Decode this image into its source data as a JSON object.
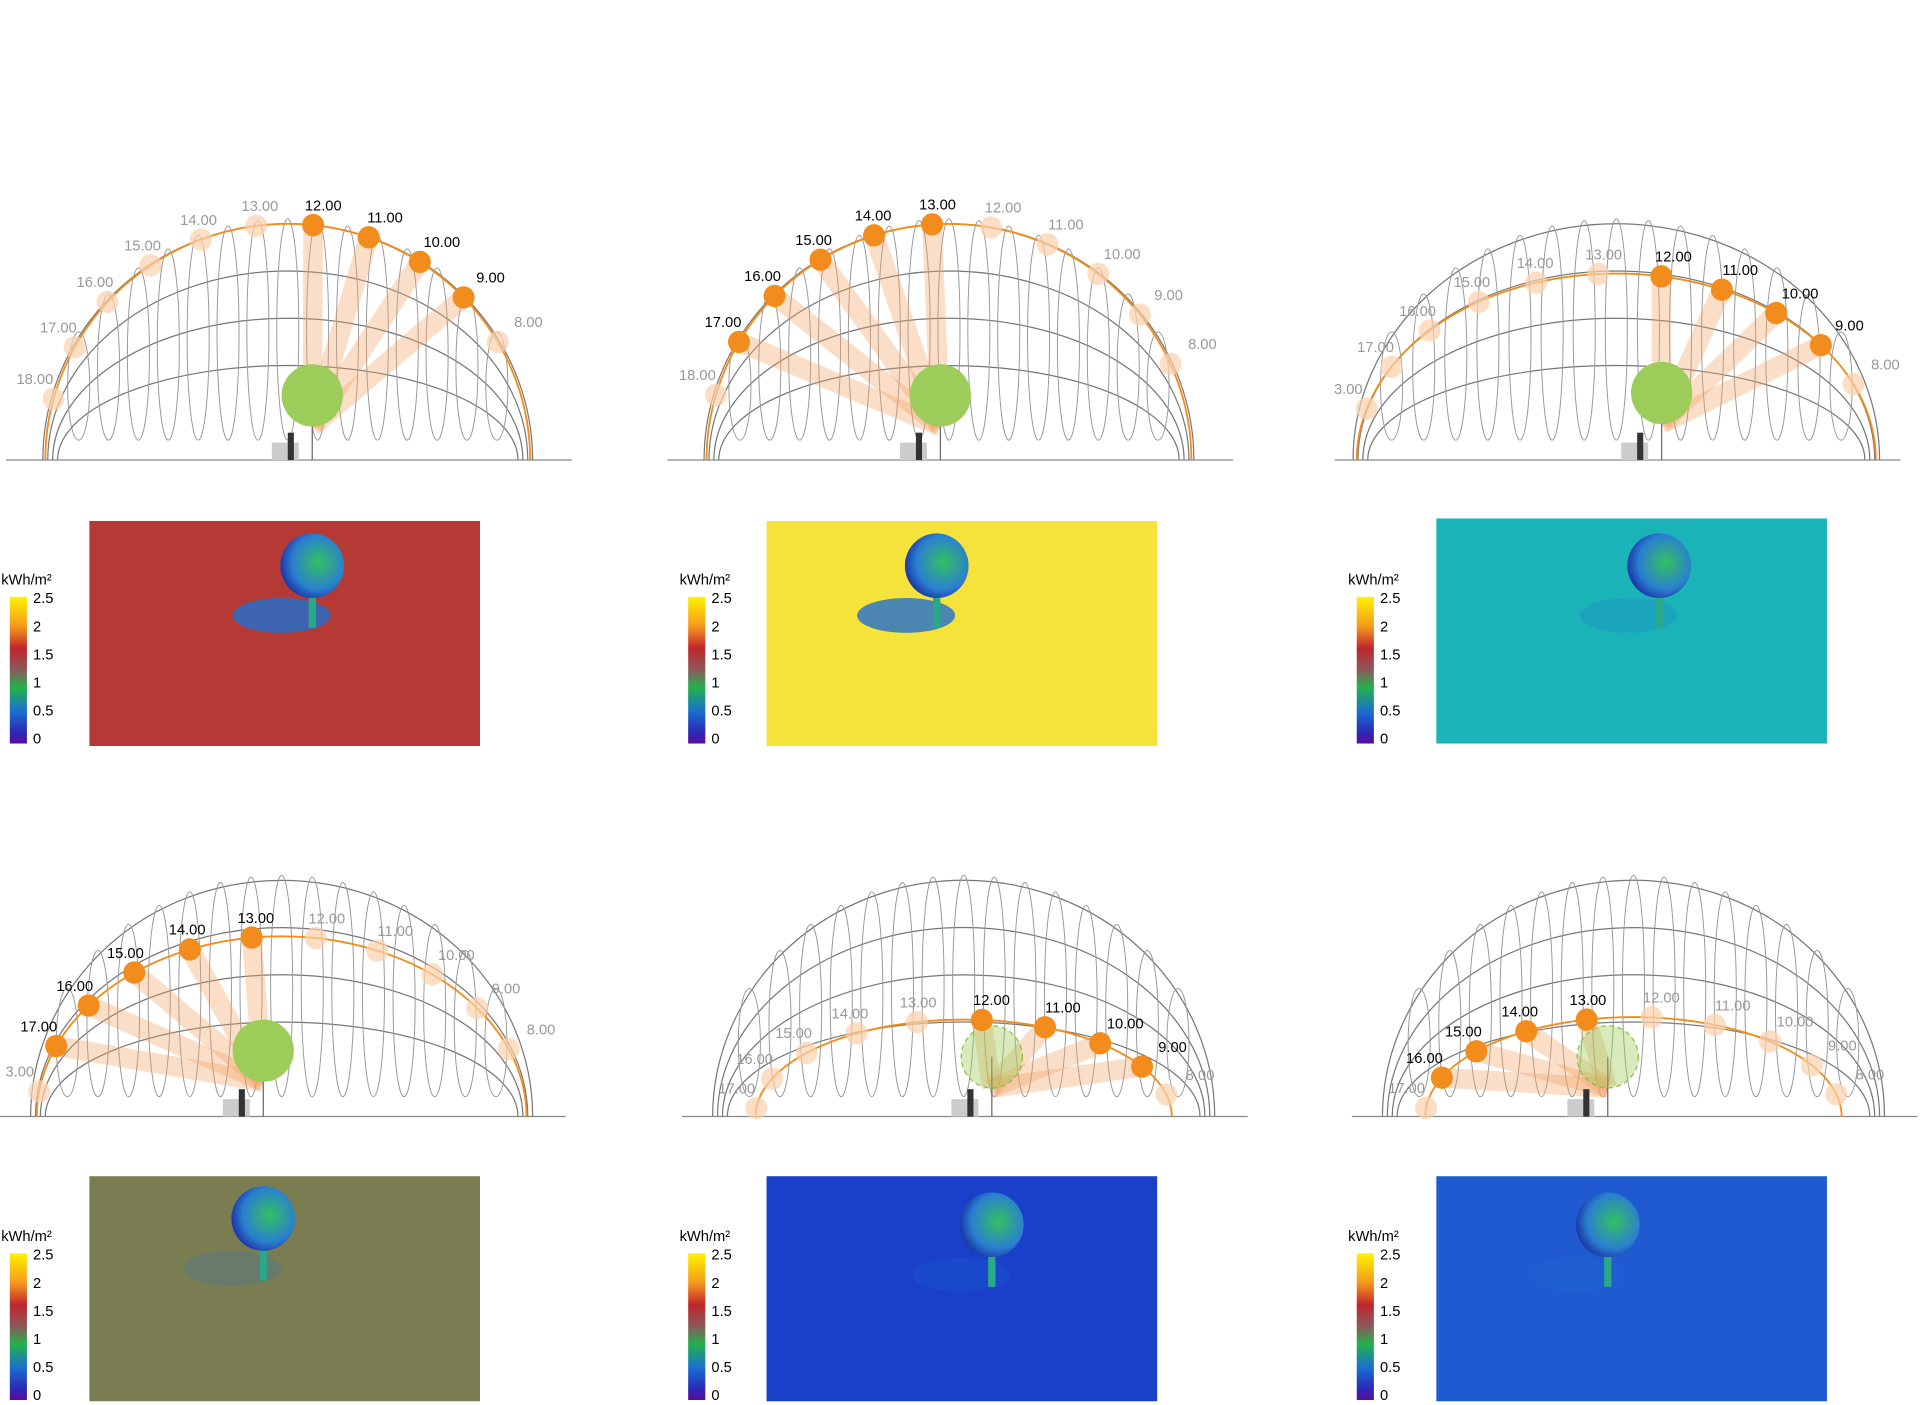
{
  "legend": {
    "unit": "kWh/m²",
    "ticks": [
      "2.5",
      "2",
      "1.5",
      "1",
      "0.5",
      "0"
    ]
  },
  "panels": [
    {
      "hours": [
        {
          "label": "18.00",
          "active": false
        },
        {
          "label": "17.00",
          "active": false
        },
        {
          "label": "16.00",
          "active": false
        },
        {
          "label": "15.00",
          "active": false
        },
        {
          "label": "14.00",
          "active": false
        },
        {
          "label": "13.00",
          "active": false
        },
        {
          "label": "12.00",
          "active": true
        },
        {
          "label": "11.00",
          "active": true
        },
        {
          "label": "10.00",
          "active": true
        },
        {
          "label": "9.00",
          "active": true
        },
        {
          "label": "8.00",
          "active": false
        }
      ]
    },
    {
      "hours": [
        {
          "label": "18.00",
          "active": false
        },
        {
          "label": "17.00",
          "active": true
        },
        {
          "label": "16.00",
          "active": true
        },
        {
          "label": "15.00",
          "active": true
        },
        {
          "label": "14.00",
          "active": true
        },
        {
          "label": "13.00",
          "active": true
        },
        {
          "label": "12.00",
          "active": false
        },
        {
          "label": "11.00",
          "active": false
        },
        {
          "label": "10.00",
          "active": false
        },
        {
          "label": "9.00",
          "active": false
        },
        {
          "label": "8.00",
          "active": false
        }
      ]
    },
    {
      "hours": [
        {
          "label": "3.00",
          "active": false
        },
        {
          "label": "17.00",
          "active": false
        },
        {
          "label": "16.00",
          "active": false
        },
        {
          "label": "15.00",
          "active": false
        },
        {
          "label": "14.00",
          "active": false
        },
        {
          "label": "13.00",
          "active": false
        },
        {
          "label": "12.00",
          "active": true
        },
        {
          "label": "11.00",
          "active": true
        },
        {
          "label": "10.00",
          "active": true
        },
        {
          "label": "9.00",
          "active": true
        },
        {
          "label": "8.00",
          "active": false
        }
      ]
    },
    {
      "hours": [
        {
          "label": "3.00",
          "active": false
        },
        {
          "label": "17.00",
          "active": true
        },
        {
          "label": "16.00",
          "active": true
        },
        {
          "label": "15.00",
          "active": true
        },
        {
          "label": "14.00",
          "active": true
        },
        {
          "label": "13.00",
          "active": true
        },
        {
          "label": "12.00",
          "active": false
        },
        {
          "label": "11.00",
          "active": false
        },
        {
          "label": "10.00",
          "active": false
        },
        {
          "label": "9.00",
          "active": false
        },
        {
          "label": "8.00",
          "active": false
        }
      ]
    },
    {
      "hours": [
        {
          "label": "17.00",
          "active": false
        },
        {
          "label": "16.00",
          "active": false
        },
        {
          "label": "15.00",
          "active": false
        },
        {
          "label": "14.00",
          "active": false
        },
        {
          "label": "13.00",
          "active": false
        },
        {
          "label": "12.00",
          "active": true
        },
        {
          "label": "11.00",
          "active": true
        },
        {
          "label": "10.00",
          "active": true
        },
        {
          "label": "9.00",
          "active": true
        },
        {
          "label": "8.00",
          "active": false
        }
      ]
    },
    {
      "hours": [
        {
          "label": "17.00",
          "active": false
        },
        {
          "label": "16.00",
          "active": true
        },
        {
          "label": "15.00",
          "active": true
        },
        {
          "label": "14.00",
          "active": true
        },
        {
          "label": "13.00",
          "active": true
        },
        {
          "label": "12.00",
          "active": false
        },
        {
          "label": "11.00",
          "active": false
        },
        {
          "label": "10.00",
          "active": false
        },
        {
          "label": "9.00",
          "active": false
        },
        {
          "label": "8.00",
          "active": false
        }
      ]
    }
  ]
}
